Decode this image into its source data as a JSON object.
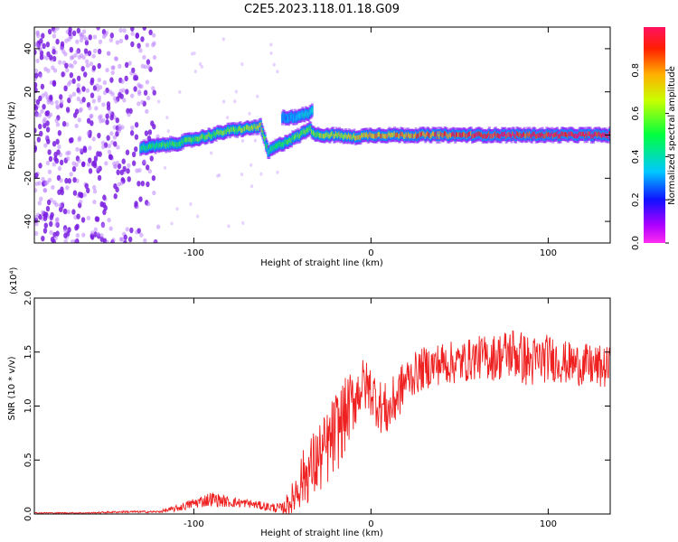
{
  "title": "C2E5.2023.118.01.18.G09",
  "colors": {
    "snr_line": "#ee2020",
    "point_low": "#b87aff",
    "point_high": "#7a1fe0"
  },
  "colorbar": {
    "label": "Normalized spectral amplitude",
    "ticks": [
      "0.0",
      "0.2",
      "0.4",
      "0.6",
      "0.8"
    ],
    "tick_values": [
      0.0,
      0.2,
      0.4,
      0.6,
      0.8
    ],
    "range": [
      0,
      1
    ],
    "colormap": "rainbow (magenta-blue-cyan-green-yellow-red)"
  },
  "chart_data": [
    {
      "type": "heatmap",
      "title": "C2E5.2023.118.01.18.G09",
      "xlabel": "Height of straight line (km)",
      "ylabel": "Frequency (Hz)",
      "xlim": [
        -190,
        135
      ],
      "ylim": [
        -50,
        50
      ],
      "xticks": [
        -100,
        0,
        100
      ],
      "xtick_labels": [
        "-100",
        "0",
        "100"
      ],
      "yticks": [
        -40,
        -20,
        0,
        20,
        40
      ],
      "ytick_labels": [
        "-40",
        "-20",
        "0",
        "20",
        "40"
      ],
      "noise_region": {
        "x_from": -190,
        "x_to": -120,
        "y_from": -50,
        "y_to": 50
      },
      "ridge": {
        "x": [
          -130,
          -120,
          -110,
          -100,
          -90,
          -80,
          -70,
          -62,
          -58,
          -55,
          -50,
          -45,
          -40,
          -35,
          -30,
          -20,
          -10,
          0,
          20,
          40,
          60,
          80,
          100,
          135
        ],
        "freq": [
          -6,
          -5,
          -4,
          -2,
          0,
          2,
          3,
          4,
          -8,
          -6,
          -4,
          -2,
          0,
          3,
          0,
          0,
          -1,
          0,
          0,
          0,
          0,
          0,
          0,
          0
        ],
        "amplitude": [
          0.45,
          0.5,
          0.5,
          0.55,
          0.55,
          0.6,
          0.6,
          0.7,
          0.45,
          0.45,
          0.5,
          0.5,
          0.55,
          0.55,
          0.6,
          0.65,
          0.7,
          0.75,
          0.8,
          0.85,
          0.9,
          0.95,
          0.95,
          1.0
        ]
      },
      "upper_branch": {
        "x": [
          -50,
          -45,
          -40,
          -35,
          -33
        ],
        "freq": [
          8,
          8,
          9,
          10,
          12
        ],
        "amplitude": [
          0.3,
          0.3,
          0.35,
          0.4,
          0.4
        ]
      }
    },
    {
      "type": "line",
      "xlabel": "Height of straight line (km)",
      "ylabel": "SNR (10 * v/v)",
      "y_multiplier": "(x10⁴)",
      "xlim": [
        -190,
        135
      ],
      "ylim": [
        0,
        2.0
      ],
      "xticks": [
        -100,
        0,
        100
      ],
      "xtick_labels": [
        "-100",
        "0",
        "100"
      ],
      "yticks": [
        0,
        0.5,
        1.0,
        1.5,
        2.0
      ],
      "ytick_labels": [
        "0.0",
        "0.5",
        "1.0",
        "1.5",
        "2.0"
      ],
      "series": [
        {
          "x": [
            -190,
            -160,
            -140,
            -120,
            -110,
            -100,
            -90,
            -80,
            -70,
            -60,
            -50,
            -45,
            -40,
            -35,
            -30,
            -25,
            -20,
            -15,
            -10,
            -5,
            0,
            5,
            10,
            15,
            20,
            30,
            40,
            50,
            60,
            70,
            80,
            90,
            100,
            110,
            120,
            135
          ],
          "y": [
            0.01,
            0.01,
            0.02,
            0.02,
            0.05,
            0.1,
            0.14,
            0.11,
            0.1,
            0.07,
            0.05,
            0.12,
            0.3,
            0.4,
            0.5,
            0.6,
            0.75,
            0.9,
            1.05,
            1.2,
            1.15,
            1.0,
            0.95,
            1.1,
            1.25,
            1.35,
            1.4,
            1.4,
            1.45,
            1.45,
            1.5,
            1.4,
            1.45,
            1.4,
            1.38,
            1.35
          ],
          "amp": [
            0.005,
            0.005,
            0.01,
            0.01,
            0.03,
            0.05,
            0.07,
            0.05,
            0.04,
            0.04,
            0.05,
            0.15,
            0.25,
            0.3,
            0.35,
            0.35,
            0.4,
            0.35,
            0.3,
            0.25,
            0.25,
            0.25,
            0.25,
            0.25,
            0.2,
            0.2,
            0.2,
            0.2,
            0.2,
            0.22,
            0.25,
            0.25,
            0.22,
            0.2,
            0.2,
            0.2
          ]
        }
      ]
    }
  ]
}
